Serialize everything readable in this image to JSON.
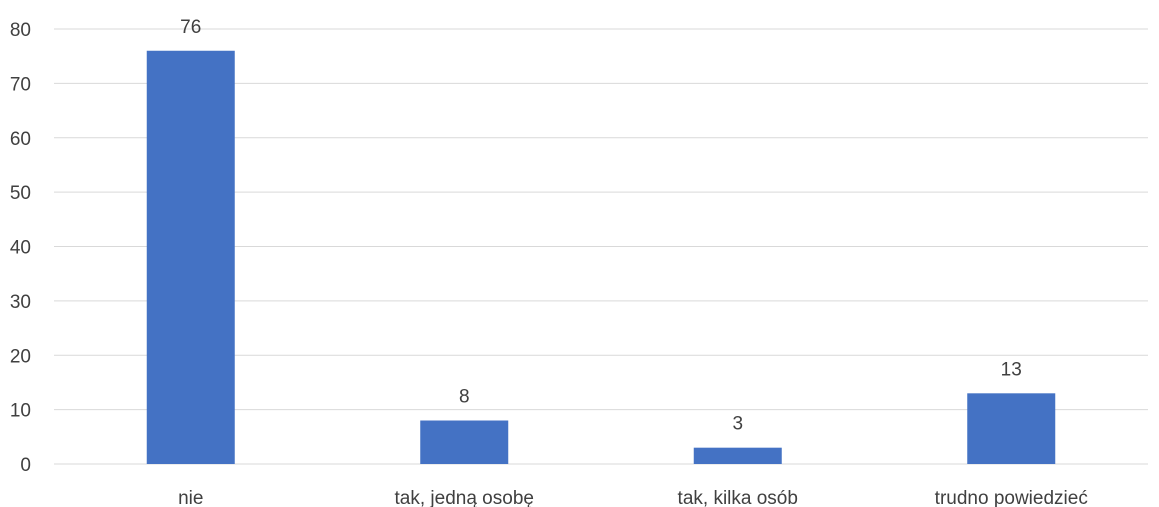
{
  "chart_data": {
    "type": "bar",
    "categories": [
      "nie",
      "tak, jedną osobę",
      "tak, kilka osób",
      "trudno powiedzieć"
    ],
    "values": [
      76,
      8,
      3,
      13
    ],
    "data_labels": [
      "76",
      "8",
      "3",
      "13"
    ],
    "ylim": [
      0,
      80
    ],
    "yticks": [
      0,
      10,
      20,
      30,
      40,
      50,
      60,
      70,
      80
    ],
    "grid": true,
    "bar_color": "#4472c4",
    "title": "",
    "xlabel": "",
    "ylabel": ""
  }
}
